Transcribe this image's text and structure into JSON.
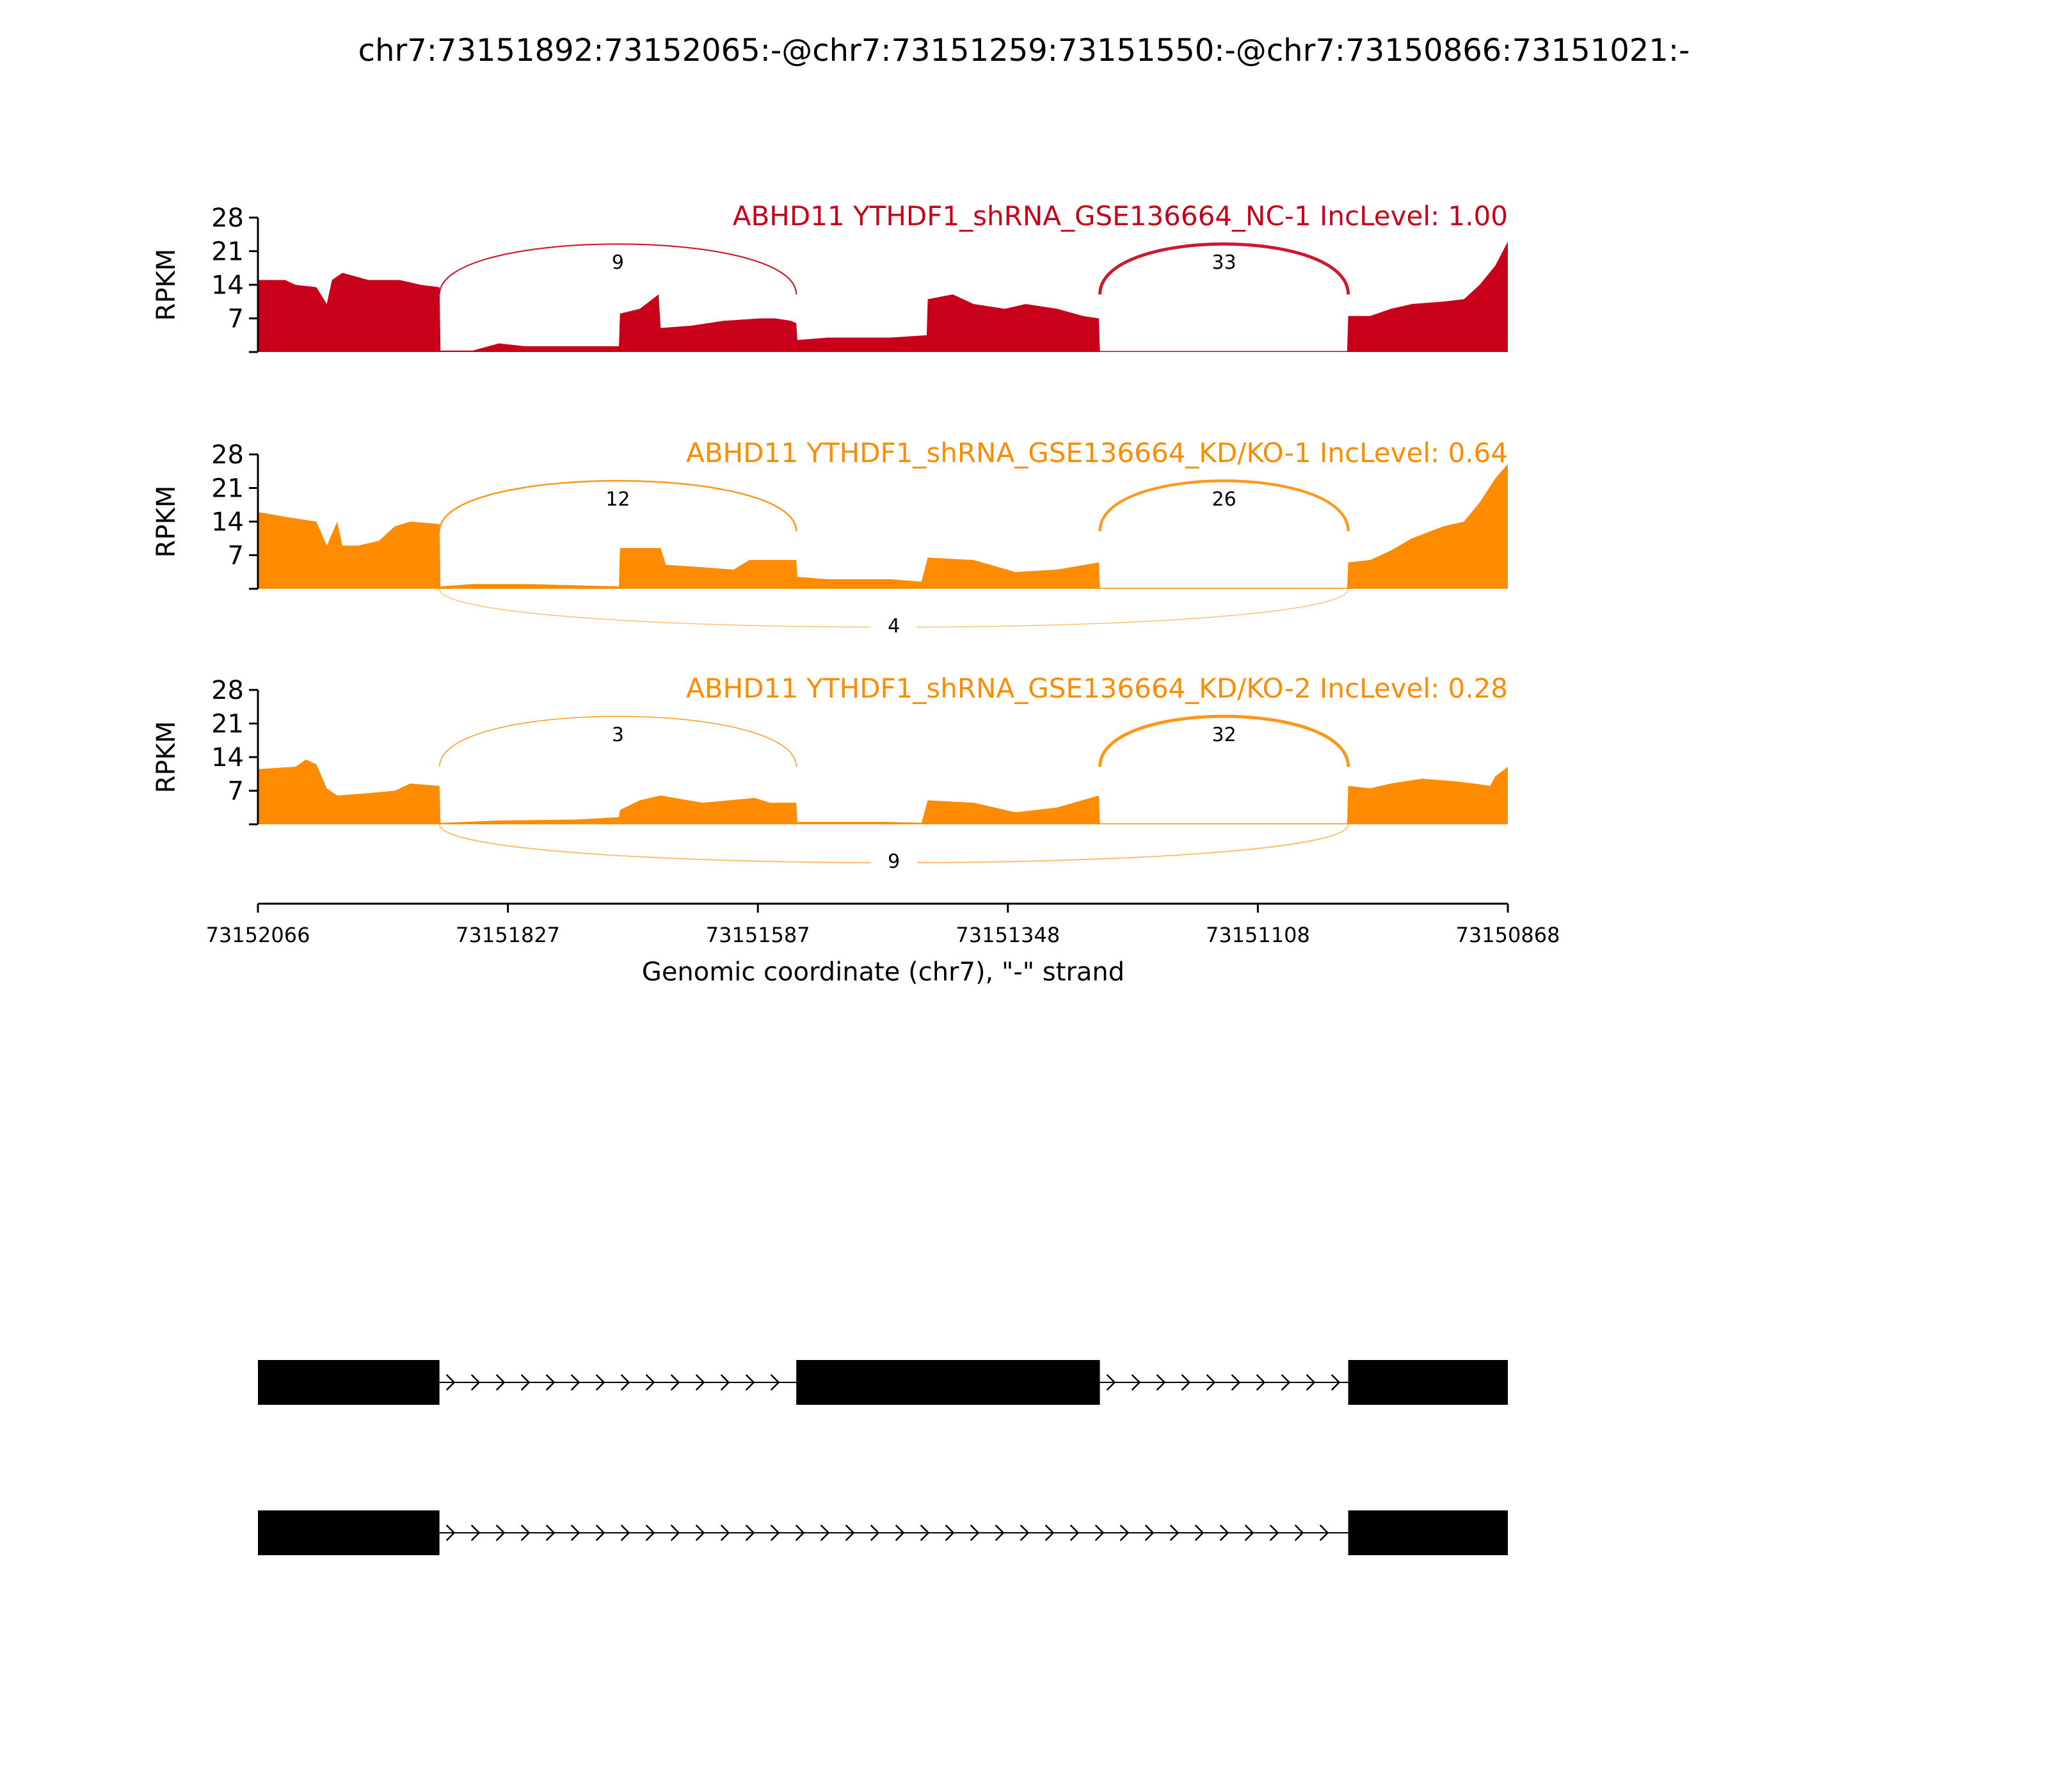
{
  "chart_data": {
    "type": "area",
    "title": "chr7:73151892:73152065:-@chr7:73151259:73151550:-@chr7:73150866:73151021:-",
    "xlabel": "Genomic coordinate (chr7), \"-\" strand",
    "ylabel": "RPKM",
    "xlim": [
      73152066,
      73150868
    ],
    "x_ticks": [
      "73152066",
      "73151827",
      "73151587",
      "73151348",
      "73151108",
      "73150868"
    ],
    "ylim": [
      0,
      28
    ],
    "y_ticks": [
      "28",
      "21",
      "14",
      "7"
    ],
    "exons": [
      {
        "start": 73152065,
        "end": 73151892
      },
      {
        "start": 73151550,
        "end": 73151259
      },
      {
        "start": 73151021,
        "end": 73150866
      }
    ],
    "tracks": [
      {
        "name": "ABHD11 YTHDF1_shRNA_GSE136664_NC-1 IncLevel: 1.00",
        "color": "#c8001a",
        "coverage": [
          [
            73152066,
            15
          ],
          [
            73152040,
            15
          ],
          [
            73152030,
            14
          ],
          [
            73152010,
            13.5
          ],
          [
            73152000,
            10
          ],
          [
            73151995,
            15
          ],
          [
            73151985,
            16.5
          ],
          [
            73151960,
            15
          ],
          [
            73151930,
            15
          ],
          [
            73151910,
            14
          ],
          [
            73151892,
            13.5
          ],
          [
            73151891,
            0.3
          ],
          [
            73151860,
            0.3
          ],
          [
            73151835,
            1.8
          ],
          [
            73151810,
            1.2
          ],
          [
            73151720,
            1.2
          ],
          [
            73151719,
            8
          ],
          [
            73151700,
            9
          ],
          [
            73151682,
            12
          ],
          [
            73151680,
            5
          ],
          [
            73151650,
            5.5
          ],
          [
            73151620,
            6.5
          ],
          [
            73151585,
            7
          ],
          [
            73151570,
            7
          ],
          [
            73151555,
            6.5
          ],
          [
            73151550,
            6
          ],
          [
            73151549,
            2.5
          ],
          [
            73151520,
            3
          ],
          [
            73151460,
            3
          ],
          [
            73151425,
            3.5
          ],
          [
            73151424,
            11
          ],
          [
            73151400,
            12
          ],
          [
            73151380,
            10
          ],
          [
            73151350,
            9
          ],
          [
            73151330,
            10
          ],
          [
            73151300,
            9
          ],
          [
            73151275,
            7.5
          ],
          [
            73151260,
            7
          ],
          [
            73151259,
            0.2
          ],
          [
            73151022,
            0.2
          ],
          [
            73151021,
            7.5
          ],
          [
            73151000,
            7.5
          ],
          [
            73150980,
            9
          ],
          [
            73150960,
            10
          ],
          [
            73150930,
            10.5
          ],
          [
            73150910,
            11
          ],
          [
            73150895,
            14
          ],
          [
            73150880,
            18
          ],
          [
            73150868,
            23
          ]
        ],
        "junctions": [
          {
            "from": 73151892,
            "to": 73151550,
            "count": "9",
            "side": "above"
          },
          {
            "from": 73151259,
            "to": 73151021,
            "count": "33",
            "side": "above"
          }
        ]
      },
      {
        "name": "ABHD11 YTHDF1_shRNA_GSE136664_KD/KO-1 IncLevel: 0.64",
        "color": "#ff8c00",
        "coverage": [
          [
            73152066,
            16
          ],
          [
            73152040,
            15
          ],
          [
            73152010,
            14
          ],
          [
            73152000,
            9
          ],
          [
            73151990,
            14
          ],
          [
            73151985,
            9
          ],
          [
            73151970,
            9
          ],
          [
            73151950,
            10
          ],
          [
            73151935,
            13
          ],
          [
            73151920,
            14
          ],
          [
            73151892,
            13.5
          ],
          [
            73151891,
            0.5
          ],
          [
            73151860,
            1
          ],
          [
            73151810,
            1
          ],
          [
            73151720,
            0.5
          ],
          [
            73151719,
            8.5
          ],
          [
            73151680,
            8.5
          ],
          [
            73151675,
            5
          ],
          [
            73151640,
            4.5
          ],
          [
            73151610,
            4
          ],
          [
            73151595,
            6
          ],
          [
            73151560,
            6
          ],
          [
            73151550,
            6
          ],
          [
            73151549,
            2.5
          ],
          [
            73151520,
            2
          ],
          [
            73151460,
            2
          ],
          [
            73151430,
            1.5
          ],
          [
            73151424,
            6.5
          ],
          [
            73151380,
            6
          ],
          [
            73151340,
            3.5
          ],
          [
            73151300,
            4
          ],
          [
            73151260,
            5.5
          ],
          [
            73151259,
            0.2
          ],
          [
            73151022,
            0.2
          ],
          [
            73151021,
            5.5
          ],
          [
            73151000,
            6
          ],
          [
            73150980,
            8
          ],
          [
            73150960,
            10.5
          ],
          [
            73150930,
            13
          ],
          [
            73150910,
            14
          ],
          [
            73150895,
            18
          ],
          [
            73150880,
            23
          ],
          [
            73150868,
            26
          ]
        ],
        "junctions": [
          {
            "from": 73151892,
            "to": 73151550,
            "count": "12",
            "side": "above"
          },
          {
            "from": 73151259,
            "to": 73151021,
            "count": "26",
            "side": "above"
          },
          {
            "from": 73151892,
            "to": 73151021,
            "count": "4",
            "side": "below"
          }
        ]
      },
      {
        "name": "ABHD11 YTHDF1_shRNA_GSE136664_KD/KO-2 IncLevel: 0.28",
        "color": "#ff8c00",
        "coverage": [
          [
            73152066,
            11.5
          ],
          [
            73152030,
            12
          ],
          [
            73152020,
            13.5
          ],
          [
            73152010,
            12.5
          ],
          [
            73152000,
            7.5
          ],
          [
            73151990,
            6
          ],
          [
            73151960,
            6.5
          ],
          [
            73151935,
            7
          ],
          [
            73151920,
            8.5
          ],
          [
            73151892,
            8
          ],
          [
            73151891,
            0.3
          ],
          [
            73151835,
            0.8
          ],
          [
            73151760,
            1
          ],
          [
            73151720,
            1.5
          ],
          [
            73151719,
            3
          ],
          [
            73151700,
            5
          ],
          [
            73151680,
            6
          ],
          [
            73151640,
            4.5
          ],
          [
            73151590,
            5.5
          ],
          [
            73151575,
            4.5
          ],
          [
            73151550,
            4.5
          ],
          [
            73151549,
            0.5
          ],
          [
            73151460,
            0.5
          ],
          [
            73151430,
            0.3
          ],
          [
            73151424,
            5
          ],
          [
            73151380,
            4.5
          ],
          [
            73151340,
            2.5
          ],
          [
            73151300,
            3.5
          ],
          [
            73151260,
            6
          ],
          [
            73151259,
            0.2
          ],
          [
            73151022,
            0.2
          ],
          [
            73151021,
            8
          ],
          [
            73151000,
            7.5
          ],
          [
            73150980,
            8.5
          ],
          [
            73150950,
            9.5
          ],
          [
            73150920,
            9
          ],
          [
            73150900,
            8.5
          ],
          [
            73150885,
            8
          ],
          [
            73150880,
            10
          ],
          [
            73150868,
            12
          ]
        ],
        "junctions": [
          {
            "from": 73151892,
            "to": 73151550,
            "count": "3",
            "side": "above"
          },
          {
            "from": 73151259,
            "to": 73151021,
            "count": "32",
            "side": "above"
          },
          {
            "from": 73151892,
            "to": 73151021,
            "count": "9",
            "side": "below"
          }
        ]
      }
    ],
    "isoforms": [
      {
        "exons": [
          [
            73152066,
            73151892
          ],
          [
            73151550,
            73151259
          ],
          [
            73151021,
            73150868
          ]
        ]
      },
      {
        "exons": [
          [
            73152066,
            73151892
          ],
          [
            73151021,
            73150868
          ]
        ]
      }
    ]
  }
}
